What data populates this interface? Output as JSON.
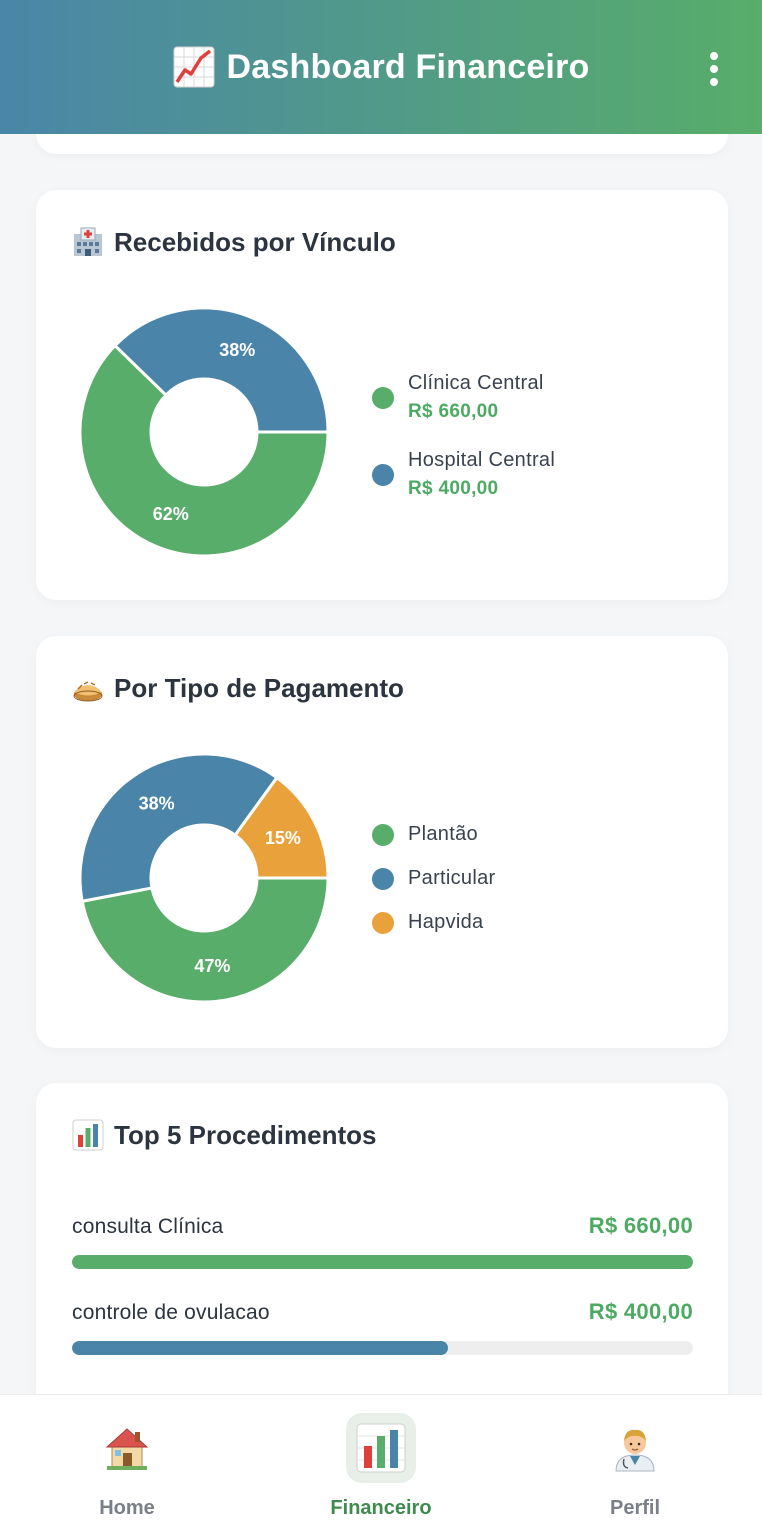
{
  "header": {
    "title": "Dashboard Financeiro",
    "icon": "chart-increasing-icon",
    "menu_icon": "kebab-menu-icon"
  },
  "colors": {
    "green": "#58ad6a",
    "blue": "#4a84a8",
    "orange": "#e9a23b",
    "header_gradient_start": "#4a86a8",
    "header_gradient_end": "#58ad6a"
  },
  "vinculo": {
    "title": "Recebidos por Vínculo",
    "icon": "hospital-icon",
    "items": [
      {
        "label": "Clínica Central",
        "value": "R$ 660,00",
        "percent_label": "62%",
        "color": "#58ad6a"
      },
      {
        "label": "Hospital Central",
        "value": "R$ 400,00",
        "percent_label": "38%",
        "color": "#4a84a8"
      }
    ]
  },
  "tipo": {
    "title": "Por Tipo de Pagamento",
    "icon": "pie-icon",
    "items": [
      {
        "label": "Plantão",
        "percent_label": "47%",
        "color": "#58ad6a"
      },
      {
        "label": "Particular",
        "percent_label": "38%",
        "color": "#4a84a8"
      },
      {
        "label": "Hapvida",
        "percent_label": "15%",
        "color": "#e9a23b"
      }
    ]
  },
  "top5": {
    "title": "Top 5 Procedimentos",
    "icon": "bar-chart-icon",
    "items": [
      {
        "name": "consulta Clínica",
        "value": "R$ 660,00",
        "fraction": 1.0,
        "color": "#58ad6a"
      },
      {
        "name": "controle de ovulacao",
        "value": "R$ 400,00",
        "fraction": 0.606,
        "color": "#4a84a8"
      }
    ]
  },
  "chart_data": [
    {
      "type": "pie",
      "title": "Recebidos por Vínculo",
      "categories": [
        "Clínica Central",
        "Hospital Central"
      ],
      "values": [
        660,
        400
      ],
      "percent_labels": [
        "62%",
        "38%"
      ],
      "legend": "right"
    },
    {
      "type": "pie",
      "title": "Por Tipo de Pagamento",
      "categories": [
        "Plantão",
        "Particular",
        "Hapvida"
      ],
      "values": [
        47,
        38,
        15
      ],
      "percent_labels": [
        "47%",
        "38%",
        "15%"
      ],
      "legend": "right"
    },
    {
      "type": "bar",
      "title": "Top 5 Procedimentos",
      "categories": [
        "consulta Clínica",
        "controle de ovulacao"
      ],
      "values": [
        660,
        400
      ],
      "value_labels": [
        "R$ 660,00",
        "R$ 400,00"
      ]
    }
  ],
  "nav": {
    "items": [
      {
        "label": "Home",
        "icon": "house-icon",
        "active": false
      },
      {
        "label": "Financeiro",
        "icon": "bar-chart-icon",
        "active": true
      },
      {
        "label": "Perfil",
        "icon": "doctor-icon",
        "active": false
      }
    ]
  }
}
